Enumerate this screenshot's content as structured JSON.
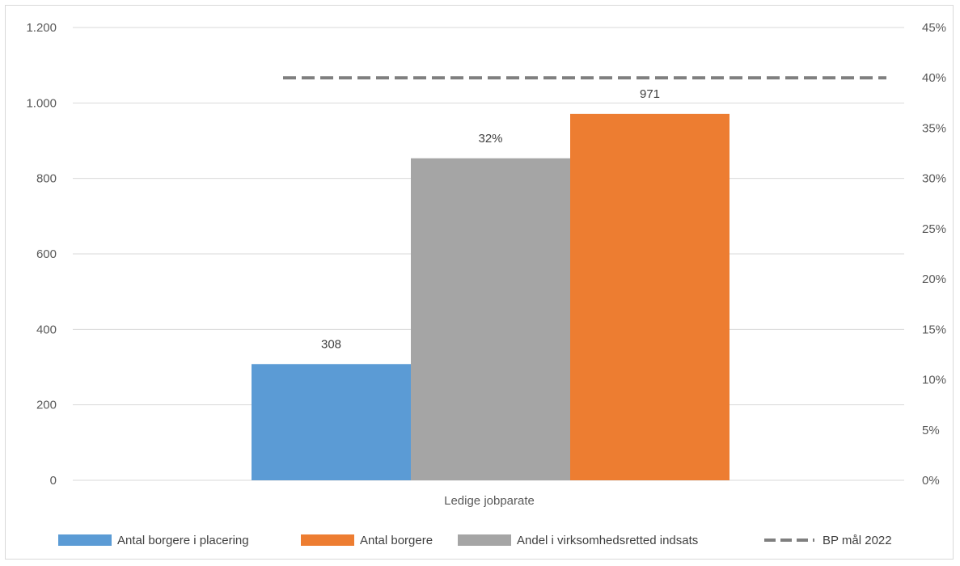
{
  "chart_data": {
    "type": "bar",
    "categories": [
      "Ledige jobparate"
    ],
    "y_left": {
      "ylim": [
        0,
        1200
      ],
      "ticks": [
        "0",
        "200",
        "400",
        "600",
        "800",
        "1.000",
        "1.200"
      ],
      "tick_values": [
        0,
        200,
        400,
        600,
        800,
        1000,
        1200
      ]
    },
    "y_right": {
      "ylim": [
        0,
        0.45
      ],
      "ticks": [
        "0%",
        "5%",
        "10%",
        "15%",
        "20%",
        "25%",
        "30%",
        "35%",
        "40%",
        "45%"
      ],
      "tick_values": [
        0,
        0.05,
        0.1,
        0.15,
        0.2,
        0.25,
        0.3,
        0.35,
        0.4,
        0.45
      ]
    },
    "series": [
      {
        "name": "Antal borgere i placering",
        "values": [
          308
        ],
        "axis": "left",
        "color": "#5b9bd5",
        "label": "308"
      },
      {
        "name": "Andel i virksomhedsretted indsats",
        "values": [
          0.32
        ],
        "axis": "right",
        "color": "#a5a5a5",
        "label": "32%"
      },
      {
        "name": "Antal borgere",
        "values": [
          971
        ],
        "axis": "left",
        "color": "#ed7d31",
        "label": "971"
      }
    ],
    "target_line": {
      "name": "BP mål 2022",
      "value": 0.4,
      "axis": "right",
      "color": "#7f7f7f",
      "style": "dashed"
    },
    "legend": {
      "placement": "bottom",
      "entries": [
        "Antal borgere i placering",
        "Antal borgere",
        "Andel i virksomhedsretted indsats",
        "BP mål 2022"
      ]
    },
    "grid": true
  }
}
